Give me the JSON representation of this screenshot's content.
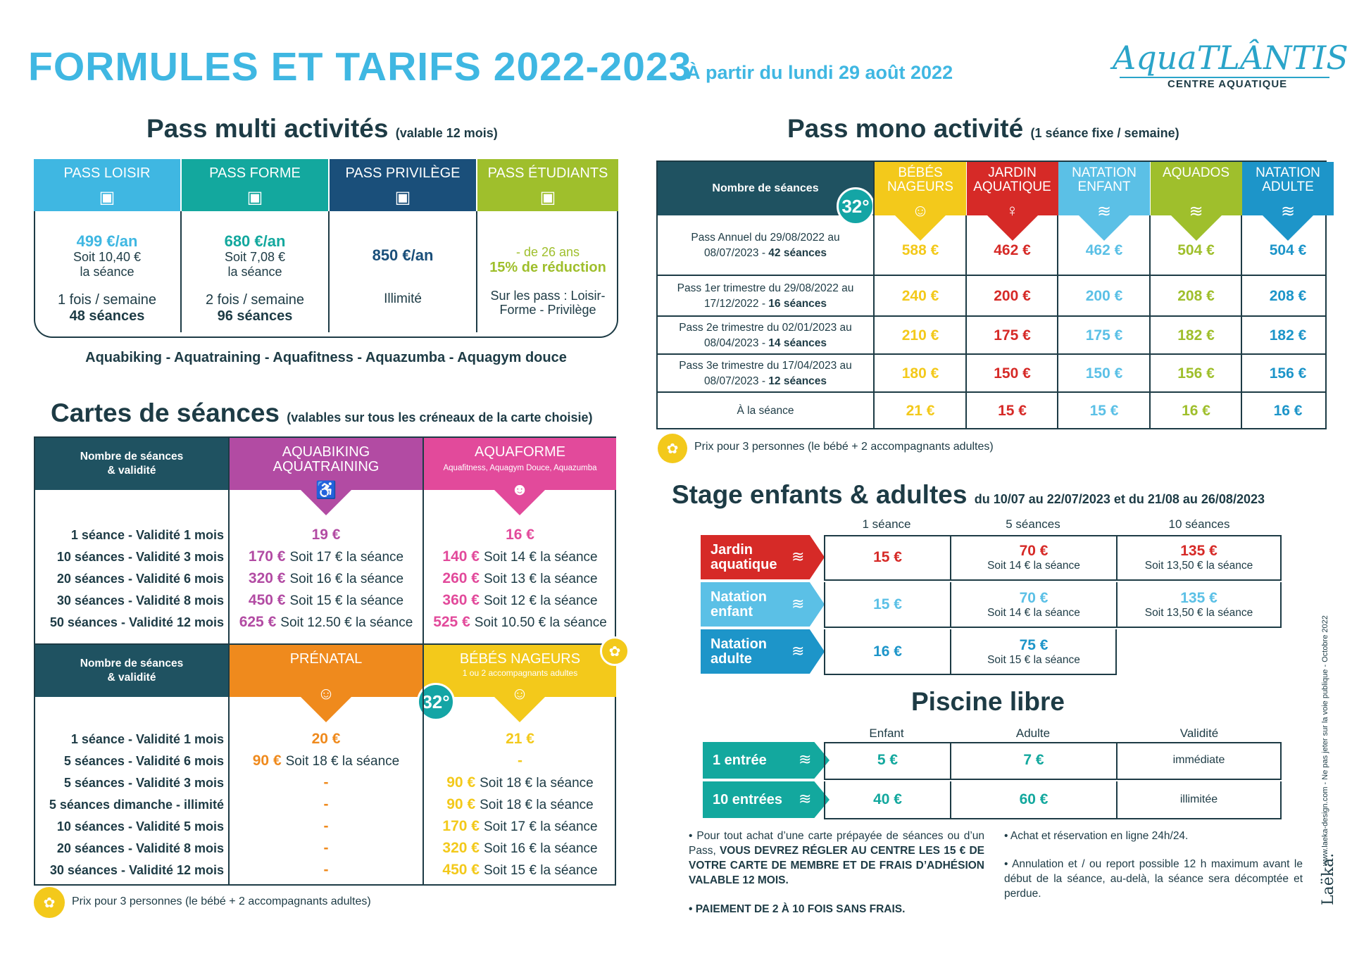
{
  "header": {
    "title": "FORMULES ET TARIFS 2022-2023",
    "subtitle": "À partir du lundi 29 août 2022",
    "logo_main": "AquaTLÂNTIS",
    "logo_sub": "CENTRE AQUATIQUE"
  },
  "colors": {
    "cyan": "#3fb7e2",
    "teal": "#13a89e",
    "navy": "#1a4f7a",
    "green": "#9fbf2c",
    "purple": "#b24ba3",
    "pink": "#e24a9b",
    "orange": "#ef8a1d",
    "yellow": "#f3c91b",
    "red": "#d62a27",
    "lightblue": "#5bc0e6",
    "blue": "#1d95c9",
    "dark": "#1f5261"
  },
  "multi": {
    "title": "Pass multi activités",
    "note": "(valable 12 mois)",
    "passes": [
      {
        "name": "PASS LOISIR",
        "price": "499 €/an",
        "per": "Soit 10,40 €",
        "per2": "la séance",
        "freq": "1 fois / semaine",
        "sessions": "48 séances"
      },
      {
        "name": "PASS FORME",
        "price": "680 €/an",
        "per": "Soit 7,08 €",
        "per2": "la séance",
        "freq": "2 fois / semaine",
        "sessions": "96 séances"
      },
      {
        "name": "PASS PRIVILÈGE",
        "price": "850 €/an",
        "freq": "Illimité"
      },
      {
        "name": "PASS ÉTUDIANTS",
        "line1": "- de 26 ans",
        "line2": "15% de réduction",
        "line3": "Sur les pass : Loisir-",
        "line4": "Forme - Privilège"
      }
    ],
    "activities": "Aquabiking - Aquatraining - Aquafitness - Aquazumba - Aquagym douce"
  },
  "cartes": {
    "title": "Cartes de séances",
    "note": "(valables sur tous les créneaux de la carte choisie)",
    "col_header": "Nombre de séances",
    "col_header2": "& validité",
    "t1": {
      "c1": "AQUABIKING",
      "c1b": "AQUATRAINING",
      "c2": "AQUAFORME",
      "c2b": "Aquafitness, Aquagym Douce, Aquazumba",
      "rows": [
        {
          "l": "1 séance - Validité 1 mois",
          "a": "19 €",
          "as": "",
          "b": "16 €",
          "bs": ""
        },
        {
          "l": "10 séances - Validité 3 mois",
          "a": "170 €",
          "as": "Soit 17 € la séance",
          "b": "140 €",
          "bs": "Soit 14 € la séance"
        },
        {
          "l": "20 séances - Validité 6 mois",
          "a": "320 €",
          "as": "Soit 16 € la séance",
          "b": "260 €",
          "bs": "Soit 13 € la séance"
        },
        {
          "l": "30 séances - Validité 8 mois",
          "a": "450 €",
          "as": "Soit 15 € la séance",
          "b": "360 €",
          "bs": "Soit 12 € la séance"
        },
        {
          "l": "50 séances - Validité 12 mois",
          "a": "625 €",
          "as": "Soit 12.50 € la séance",
          "b": "525 €",
          "bs": "Soit 10.50 € la séance"
        }
      ]
    },
    "t2": {
      "c1": "PRÉNATAL",
      "c2": "BÉBÉS NAGEURS",
      "c2b": "1 ou 2 accompagnants adultes",
      "temp": "32°",
      "rows": [
        {
          "l": "1 séance - Validité 1 mois",
          "a": "20 €",
          "as": "",
          "b": "21 €",
          "bs": ""
        },
        {
          "l": "5 séances - Validité 6 mois",
          "a": "90 €",
          "as": "Soit 18 € la séance",
          "b": "-",
          "bs": ""
        },
        {
          "l": "5 séances - Validité 3 mois",
          "a": "-",
          "as": "",
          "b": "90 €",
          "bs": "Soit 18 € la séance"
        },
        {
          "l": "5 séances dimanche - illimité",
          "a": "-",
          "as": "",
          "b": "90 €",
          "bs": "Soit 18 € la séance"
        },
        {
          "l": "10 séances - Validité 5 mois",
          "a": "-",
          "as": "",
          "b": "170 €",
          "bs": "Soit 17 € la séance"
        },
        {
          "l": "20 séances - Validité 8 mois",
          "a": "-",
          "as": "",
          "b": "320 €",
          "bs": "Soit 16 € la séance"
        },
        {
          "l": "30 séances - Validité 12 mois",
          "a": "-",
          "as": "",
          "b": "450 €",
          "bs": "Soit 15 € la séance"
        }
      ]
    },
    "footnote": "Prix pour 3 personnes (le bébé + 2 accompagnants adultes)"
  },
  "mono": {
    "title": "Pass mono activité",
    "note": "(1 séance fixe / semaine)",
    "col_header": "Nombre de séances",
    "temp": "32°",
    "cols": [
      {
        "a": "BÉBÉS",
        "b": "NAGEURS"
      },
      {
        "a": "JARDIN",
        "b": "AQUATIQUE"
      },
      {
        "a": "NATATION",
        "b": "ENFANT"
      },
      {
        "a": "AQUADOS",
        "b": ""
      },
      {
        "a": "NATATION",
        "b": "ADULTE"
      }
    ],
    "rows": [
      {
        "l1": "Pass Annuel du 29/08/2022 au",
        "l2": "08/07/2023 - ",
        "l3": "42 séances",
        "p": [
          "588 €",
          "462 €",
          "462 €",
          "504 €",
          "504 €"
        ]
      },
      {
        "l1": "Pass 1er trimestre du 29/08/2022 au",
        "l2": "17/12/2022 - ",
        "l3": "16 séances",
        "p": [
          "240 €",
          "200 €",
          "200 €",
          "208 €",
          "208 €"
        ]
      },
      {
        "l1": "Pass 2e trimestre du 02/01/2023 au",
        "l2": "08/04/2023 - ",
        "l3": "14 séances",
        "p": [
          "210 €",
          "175 €",
          "175 €",
          "182 €",
          "182 €"
        ]
      },
      {
        "l1": "Pass 3e trimestre du 17/04/2023 au",
        "l2": "08/07/2023 - ",
        "l3": "12 séances",
        "p": [
          "180 €",
          "150 €",
          "150 €",
          "156 €",
          "156 €"
        ]
      },
      {
        "l1": "À la séance",
        "l2": "",
        "l3": "",
        "p": [
          "21 €",
          "15 €",
          "15 €",
          "16 €",
          "16 €"
        ]
      }
    ],
    "footnote": "Prix pour 3 personnes (le bébé + 2 accompagnants adultes)"
  },
  "stage": {
    "title": "Stage enfants & adultes",
    "note": "du 10/07 au 22/07/2023 et du 21/08 au 26/08/2023",
    "cols": [
      "1 séance",
      "5 séances",
      "10 séances"
    ],
    "rows": [
      {
        "a": "Jardin",
        "b": "aquatique",
        "p1": "15 €",
        "p5": "70 €",
        "s5": "Soit 14 € la séance",
        "p10": "135 €",
        "s10": "Soit 13,50 € la séance"
      },
      {
        "a": "Natation",
        "b": "enfant",
        "p1": "15 €",
        "p5": "70 €",
        "s5": "Soit 14 € la séance",
        "p10": "135 €",
        "s10": "Soit 13,50 € la séance"
      },
      {
        "a": "Natation",
        "b": "adulte",
        "p1": "16 €",
        "p5": "75 €",
        "s5": "Soit 15 € la séance",
        "p10": "",
        "s10": ""
      }
    ]
  },
  "piscine": {
    "title": "Piscine libre",
    "cols": [
      "Enfant",
      "Adulte",
      "Validité"
    ],
    "rows": [
      {
        "l": "1 entrée",
        "e": "5 €",
        "a": "7 €",
        "v": "immédiate"
      },
      {
        "l": "10 entrées",
        "e": "40 €",
        "a": "60 €",
        "v": "illimitée"
      }
    ]
  },
  "bullets": {
    "b1a": "Pour tout achat d’une carte prépayée de séances ou d’un Pass, ",
    "b1b": "VOUS DEVREZ RÉGLER AU CENTRE LES 15 € DE VOTRE CARTE DE MEMBRE ET DE FRAIS D’ADHÉSION VALABLE 12 MOIS.",
    "b2": "PAIEMENT DE 2 À 10 FOIS SANS FRAIS.",
    "b3": "Achat et réservation en ligne 24h/24.",
    "b4": "Annulation et / ou report possible 12 h maximum avant le début de la séance, au-delà, la séance sera décomptée et perdue."
  },
  "side": {
    "credit": "www.laeka-design.com - Ne pas jeter sur la voie publique - Octobre 2022",
    "brand": "Laëka."
  }
}
